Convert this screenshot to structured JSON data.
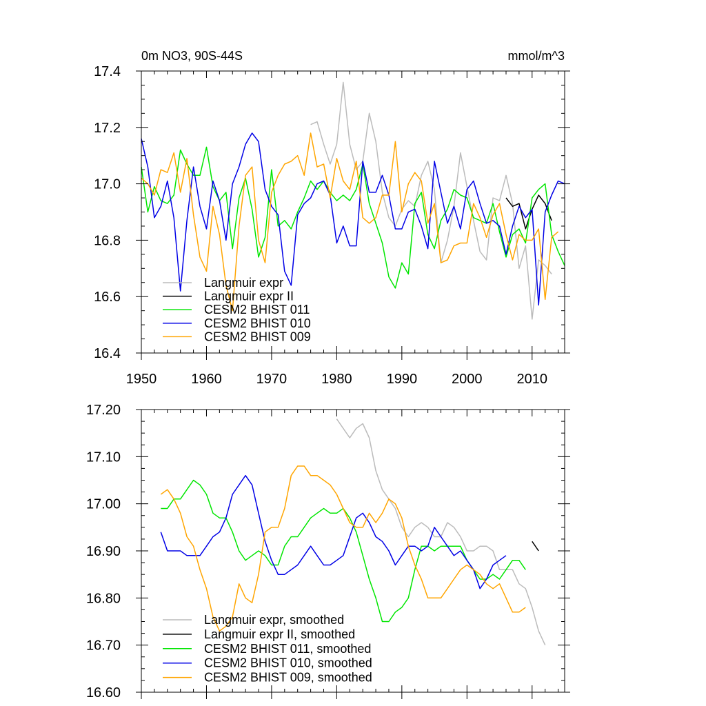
{
  "chart_data": [
    {
      "type": "line",
      "title_left": "0m NO3, 90S-44S",
      "title_right": "mmol/m^3",
      "xlim": [
        1950,
        2015
      ],
      "ylim": [
        16.4,
        17.4
      ],
      "xticks": [
        1950,
        1960,
        1970,
        1980,
        1990,
        2000,
        2010
      ],
      "xtick_labels": [
        "1950",
        "1960",
        "1970",
        "1980",
        "1990",
        "2000",
        "2010"
      ],
      "yticks": [
        16.4,
        16.6,
        16.8,
        17.0,
        17.2,
        17.4
      ],
      "ytick_labels": [
        "16.4",
        "16.6",
        "16.8",
        "17.0",
        "17.2",
        "17.4"
      ],
      "legend_position": "bottom-left",
      "series": [
        {
          "name": "Langmuir expr",
          "color": "#bbbbbb",
          "x_start": 1976,
          "values": [
            17.21,
            17.22,
            17.14,
            17.07,
            17.14,
            17.36,
            17.14,
            17.05,
            17.08,
            17.25,
            17.15,
            16.97,
            16.88,
            16.85,
            16.91,
            16.94,
            16.92,
            17.03,
            17.08,
            16.98,
            16.72,
            16.8,
            16.92,
            17.11,
            16.99,
            16.87,
            16.76,
            16.73,
            16.95,
            16.94,
            17.03,
            16.93,
            16.7,
            16.78,
            16.52,
            16.73,
            16.71,
            16.68
          ]
        },
        {
          "name": "Langmuir expr II",
          "color": "#000000",
          "x_start": 2006,
          "values": [
            16.95,
            16.92,
            16.93,
            16.84,
            16.91,
            16.96,
            16.93,
            16.87
          ]
        },
        {
          "name": "CESM2 BHIST 011",
          "color": "#00e600",
          "x_start": 1950,
          "values": [
            17.06,
            16.9,
            16.99,
            16.94,
            16.93,
            16.96,
            17.12,
            17.07,
            17.03,
            17.03,
            17.13,
            16.99,
            16.94,
            16.97,
            16.77,
            16.95,
            17.02,
            16.91,
            16.74,
            16.81,
            17.05,
            16.85,
            16.87,
            16.84,
            16.9,
            16.95,
            17.01,
            16.98,
            17.01,
            16.97,
            16.94,
            16.96,
            16.94,
            16.98,
            17.07,
            16.93,
            16.86,
            16.79,
            16.67,
            16.63,
            16.72,
            16.68,
            16.93,
            16.97,
            16.82,
            16.77,
            16.87,
            16.91,
            16.98,
            16.96,
            16.95,
            16.88,
            16.87,
            16.86,
            16.93,
            16.83,
            16.74,
            16.82,
            16.84,
            16.79,
            16.95,
            16.98,
            17.0,
            16.82,
            16.76,
            16.71
          ]
        },
        {
          "name": "CESM2 BHIST 010",
          "color": "#0000e6",
          "x_start": 1950,
          "values": [
            17.16,
            17.06,
            16.88,
            16.92,
            17.01,
            16.88,
            16.62,
            16.87,
            17.06,
            16.92,
            16.84,
            17.01,
            16.94,
            16.8,
            17.0,
            17.06,
            17.14,
            17.18,
            17.15,
            16.98,
            16.92,
            16.89,
            16.69,
            16.64,
            16.89,
            16.93,
            16.95,
            17.0,
            17.01,
            16.96,
            16.79,
            16.85,
            16.78,
            16.78,
            17.08,
            16.97,
            16.97,
            17.03,
            16.96,
            16.84,
            16.84,
            16.9,
            16.91,
            16.85,
            16.77,
            17.08,
            16.97,
            16.86,
            16.92,
            16.84,
            16.98,
            17.01,
            16.93,
            16.86,
            16.87,
            16.85,
            16.75,
            16.85,
            16.92,
            16.88,
            16.91,
            16.57,
            16.9,
            16.96,
            17.01,
            17.0
          ]
        },
        {
          "name": "CESM2 BHIST 009",
          "color": "#ffa500",
          "x_start": 1950,
          "values": [
            17.02,
            17.0,
            16.96,
            17.05,
            17.04,
            17.11,
            16.97,
            17.09,
            16.89,
            16.74,
            16.69,
            16.92,
            16.82,
            16.64,
            16.55,
            16.85,
            17.03,
            17.06,
            16.8,
            16.72,
            16.97,
            17.03,
            17.07,
            17.08,
            17.1,
            17.03,
            17.18,
            17.06,
            17.07,
            16.95,
            17.09,
            17.01,
            16.98,
            17.08,
            16.88,
            16.86,
            16.88,
            16.96,
            16.96,
            17.15,
            16.9,
            17.0,
            17.04,
            17.01,
            16.86,
            16.93,
            16.72,
            16.73,
            16.78,
            16.79,
            16.79,
            16.93,
            16.88,
            16.81,
            16.89,
            16.93,
            16.82,
            16.73,
            16.82,
            16.8,
            16.8,
            16.84,
            16.59,
            16.81,
            16.83
          ]
        }
      ]
    },
    {
      "type": "line",
      "xlim": [
        1950,
        2015
      ],
      "ylim": [
        16.6,
        17.2
      ],
      "xticks": [
        1950,
        1960,
        1970,
        1980,
        1990,
        2000,
        2010
      ],
      "yticks": [
        16.6,
        16.7,
        16.8,
        16.9,
        17.0,
        17.1,
        17.2
      ],
      "ytick_labels": [
        "16.60",
        "16.70",
        "16.80",
        "16.90",
        "17.00",
        "17.10",
        "17.20"
      ],
      "legend_position": "bottom-left",
      "series": [
        {
          "name": "Langmuir expr, smoothed",
          "color": "#bbbbbb",
          "x_start": 1980,
          "values": [
            17.18,
            17.16,
            17.14,
            17.16,
            17.17,
            17.14,
            17.07,
            17.03,
            17.01,
            16.99,
            16.95,
            16.93,
            16.95,
            16.96,
            16.95,
            16.93,
            16.93,
            16.96,
            16.95,
            16.93,
            16.9,
            16.9,
            16.91,
            16.91,
            16.9,
            16.86,
            16.86,
            16.86,
            16.83,
            16.82,
            16.78,
            16.73,
            16.7
          ]
        },
        {
          "name": "Langmuir expr II, smoothed",
          "color": "#000000",
          "x_start": 2010,
          "values": [
            16.92,
            16.9
          ]
        },
        {
          "name": "CESM2 BHIST 011, smoothed",
          "color": "#00e600",
          "x_start": 1953,
          "values": [
            16.99,
            16.99,
            17.01,
            17.01,
            17.03,
            17.05,
            17.04,
            17.02,
            16.98,
            16.97,
            16.97,
            16.94,
            16.9,
            16.88,
            16.89,
            16.9,
            16.89,
            16.87,
            16.87,
            16.91,
            16.93,
            16.93,
            16.95,
            16.97,
            16.98,
            16.99,
            16.98,
            16.98,
            16.99,
            16.97,
            16.94,
            16.89,
            16.84,
            16.8,
            16.75,
            16.75,
            16.77,
            16.78,
            16.8,
            16.86,
            16.91,
            16.91,
            16.9,
            16.91,
            16.91,
            16.91,
            16.91,
            16.88,
            16.86,
            16.84,
            16.84,
            16.85,
            16.84,
            16.86,
            16.88,
            16.88,
            16.86
          ]
        },
        {
          "name": "CESM2 BHIST 010, smoothed",
          "color": "#0000e6",
          "x_start": 1953,
          "values": [
            16.94,
            16.9,
            16.9,
            16.9,
            16.89,
            16.89,
            16.89,
            16.91,
            16.93,
            16.94,
            16.97,
            17.02,
            17.04,
            17.06,
            17.04,
            16.98,
            16.92,
            16.88,
            16.85,
            16.85,
            16.86,
            16.87,
            16.89,
            16.91,
            16.89,
            16.87,
            16.87,
            16.88,
            16.89,
            16.93,
            16.97,
            16.98,
            16.96,
            16.93,
            16.92,
            16.9,
            16.87,
            16.89,
            16.91,
            16.91,
            16.9,
            16.91,
            16.95,
            16.93,
            16.91,
            16.89,
            16.9,
            16.88,
            16.86,
            16.82,
            16.84,
            16.87,
            16.88,
            16.89
          ]
        },
        {
          "name": "CESM2 BHIST 009, smoothed",
          "color": "#ffa500",
          "x_start": 1953,
          "values": [
            17.02,
            17.03,
            17.01,
            16.98,
            16.93,
            16.91,
            16.86,
            16.82,
            16.76,
            16.73,
            16.74,
            16.76,
            16.83,
            16.8,
            16.79,
            16.85,
            16.94,
            16.95,
            16.95,
            16.99,
            17.06,
            17.08,
            17.08,
            17.06,
            17.06,
            17.05,
            17.04,
            17.02,
            16.99,
            16.96,
            16.95,
            16.95,
            16.98,
            16.96,
            16.98,
            17.01,
            17.0,
            16.97,
            16.91,
            16.87,
            16.84,
            16.8,
            16.8,
            16.8,
            16.82,
            16.84,
            16.86,
            16.87,
            16.86,
            16.85,
            16.83,
            16.82,
            16.83,
            16.8,
            16.77,
            16.77,
            16.78
          ]
        }
      ]
    }
  ]
}
